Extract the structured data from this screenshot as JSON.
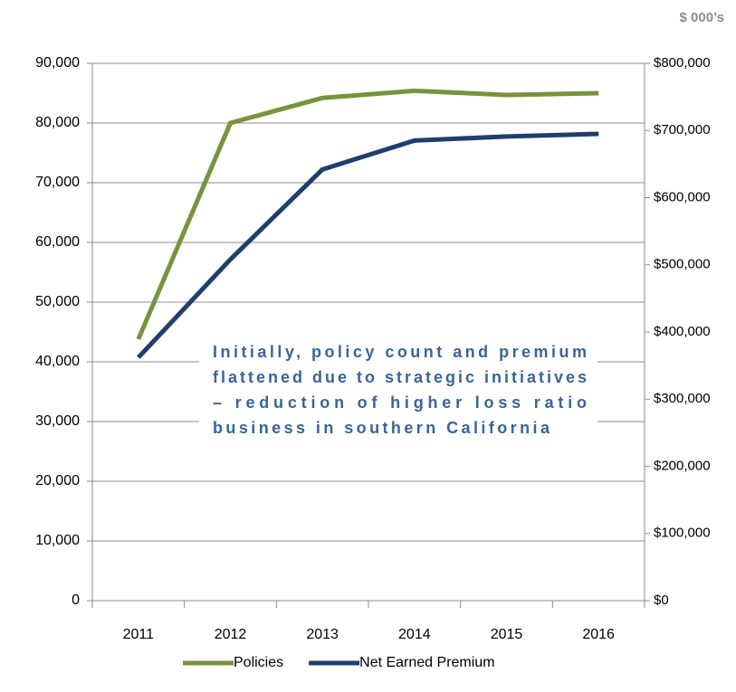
{
  "chart_data": {
    "type": "line",
    "unit_label": "$ 000’s",
    "categories": [
      "2011",
      "2012",
      "2013",
      "2014",
      "2015",
      "2016"
    ],
    "series": [
      {
        "name": "Policies",
        "color": "#77933c",
        "values": [
          43800,
          80000,
          84200,
          85400,
          84700,
          85000
        ]
      },
      {
        "name": "Net Earned Premium",
        "color": "#1f3e6e",
        "axis": "y2",
        "values": [
          362000,
          508000,
          642000,
          685000,
          691000,
          695000
        ]
      }
    ],
    "ylim": [
      0,
      90000
    ],
    "yticks": [
      0,
      {
        "value": 10000,
        "label": "10,000"
      },
      {
        "value": 20000,
        "label": "20,000"
      },
      {
        "value": 30000,
        "label": "30,000"
      },
      {
        "value": 40000,
        "label": "40,000"
      },
      {
        "value": 50000,
        "label": "50,000"
      },
      {
        "value": 60000,
        "label": "60,000"
      },
      {
        "value": 70000,
        "label": "70,000"
      },
      {
        "value": 80000,
        "label": "80,000"
      },
      {
        "value": 90000,
        "label": "90,000"
      }
    ],
    "y2lim": [
      0,
      800000
    ],
    "y2ticks": [
      {
        "value": 0,
        "label": "$0"
      },
      {
        "value": 100000,
        "label": "$100,000"
      },
      {
        "value": 200000,
        "label": "$200,000"
      },
      {
        "value": 300000,
        "label": "$300,000"
      },
      {
        "value": 400000,
        "label": "$400,000"
      },
      {
        "value": 500000,
        "label": "$500,000"
      },
      {
        "value": 600000,
        "label": "$600,000"
      },
      {
        "value": 700000,
        "label": "$700,000"
      },
      {
        "value": 800000,
        "label": "$800,000"
      }
    ],
    "grid": true,
    "legend": "bottom",
    "annotation": [
      "Initially, policy count and premium",
      "flattened due to strategic initiatives",
      "– reduction of  higher loss ratio",
      "business in southern California"
    ]
  }
}
